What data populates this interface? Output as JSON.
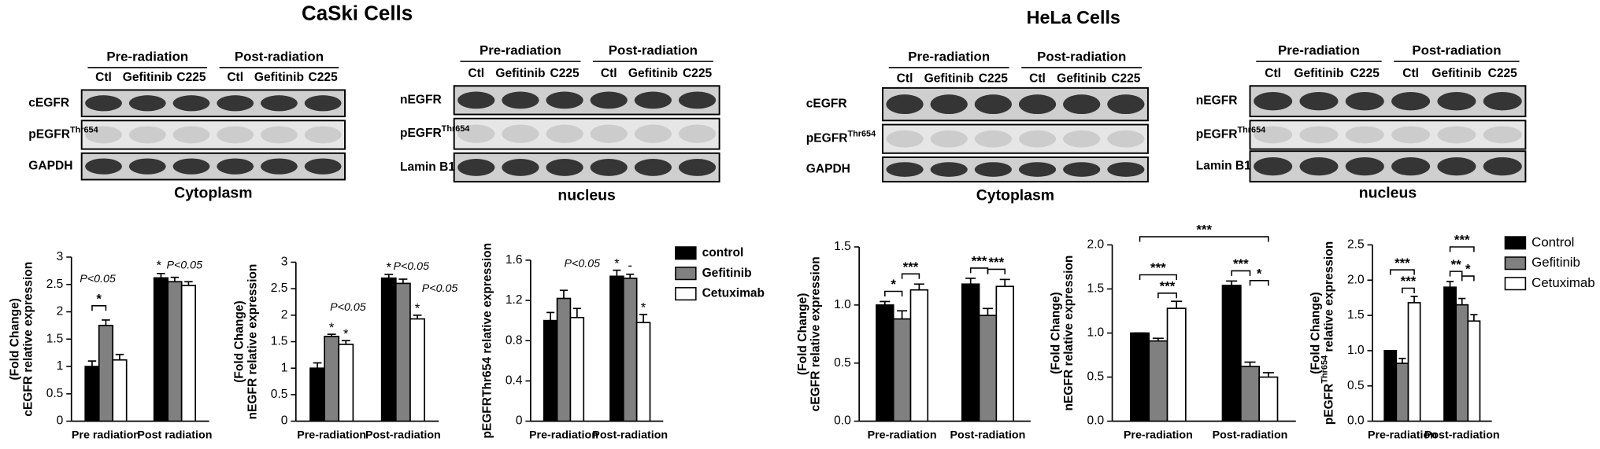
{
  "panels": {
    "caski_title": "CaSki Cells",
    "hela_title": "HeLa Cells"
  },
  "blots": [
    {
      "groups": [
        "Pre-radiation",
        "Post-radiation"
      ],
      "lanes": [
        "Ctl",
        "Gefitinib",
        "C225",
        "Ctl",
        "Gefitinib",
        "C225"
      ],
      "rows": [
        [
          {
            "text": "cEGFR"
          }
        ],
        [
          {
            "text": "pEGFR"
          },
          {
            "text": "Thr654",
            "sup": true
          }
        ],
        [
          {
            "text": "GAPDH"
          }
        ]
      ],
      "caption": "Cytoplasm"
    },
    {
      "groups": [
        "Pre-radiation",
        "Post-radiation"
      ],
      "lanes": [
        "Ctl",
        "Gefitinib",
        "C225",
        "Ctl",
        "Gefitinib",
        "C225"
      ],
      "rows": [
        [
          {
            "text": "nEGFR"
          }
        ],
        [
          {
            "text": "pEGFR"
          },
          {
            "text": "Thr654",
            "sup": true
          }
        ],
        [
          {
            "text": "Lamin B1"
          }
        ]
      ],
      "caption": "nucleus"
    },
    {
      "groups": [
        "Pre-radiation",
        "Post-radiation"
      ],
      "lanes": [
        "Ctl",
        "Gefitinib",
        "C225",
        "Ctl",
        "Gefitinib",
        "C225"
      ],
      "rows": [
        [
          {
            "text": "cEGFR"
          }
        ],
        [
          {
            "text": "pEGFR"
          },
          {
            "text": "Thr654",
            "sup": true
          }
        ],
        [
          {
            "text": "GAPDH"
          }
        ]
      ],
      "caption": "Cytoplasm"
    },
    {
      "groups": [
        "Pre-radiation",
        "Post-radiation"
      ],
      "lanes": [
        "Ctl",
        "Gefitinib",
        "C225",
        "Ctl",
        "Gefitinib",
        "C225"
      ],
      "rows": [
        [
          {
            "text": "nEGFR"
          }
        ],
        [
          {
            "text": "pEGFR"
          },
          {
            "text": "Thr654",
            "sup": true
          }
        ],
        [
          {
            "text": "Lamin B1"
          }
        ]
      ],
      "caption": "nucleus"
    }
  ],
  "chart_data": [
    {
      "type": "bar",
      "ylabel": [
        [
          {
            "text": "cEGFR relative expression"
          }
        ],
        [
          {
            "text": "(Fold Change)"
          }
        ]
      ],
      "categories": [
        "Pre radiation",
        "Post radiation"
      ],
      "ylim": [
        0,
        3
      ],
      "yticks": [
        0,
        0.5,
        1,
        1.5,
        2,
        2.5,
        3
      ],
      "series": [
        {
          "color": "#000000",
          "values": [
            1.0,
            2.62
          ],
          "errors": [
            0.1,
            0.08
          ]
        },
        {
          "color": "#808080",
          "values": [
            1.75,
            2.55
          ],
          "errors": [
            0.1,
            0.08
          ]
        },
        {
          "color": "#ffffff",
          "values": [
            1.12,
            2.48
          ],
          "errors": [
            0.1,
            0.07
          ]
        }
      ],
      "annotations": [
        "P<0.05",
        "*",
        "*",
        "P<0.05"
      ]
    },
    {
      "type": "bar",
      "ylabel": [
        [
          {
            "text": "nEGFR relative expression"
          }
        ],
        [
          {
            "text": "(Fold Change)"
          }
        ]
      ],
      "categories": [
        "Pre-radiation",
        "Post-radiation"
      ],
      "ylim": [
        0,
        3
      ],
      "yticks": [
        0,
        0.5,
        1,
        1.5,
        2,
        2.5,
        3
      ],
      "series": [
        {
          "color": "#000000",
          "values": [
            1.0,
            2.7
          ],
          "errors": [
            0.1,
            0.07
          ]
        },
        {
          "color": "#808080",
          "values": [
            1.6,
            2.6
          ],
          "errors": [
            0.04,
            0.08
          ]
        },
        {
          "color": "#ffffff",
          "values": [
            1.45,
            1.93
          ],
          "errors": [
            0.07,
            0.07
          ]
        }
      ],
      "annotations": [
        "P<0.05",
        "*",
        "*",
        "*",
        "P<0.05",
        "P<0.05",
        "*"
      ]
    },
    {
      "type": "bar",
      "ylabel": [
        [
          {
            "text": "pEGFRThr654 relative expression"
          }
        ]
      ],
      "categories": [
        "Pre-radiation",
        "Post-radiation"
      ],
      "ylim": [
        0,
        1.6
      ],
      "yticks": [
        0,
        0.4,
        0.8,
        1.2,
        1.6
      ],
      "series": [
        {
          "name": "control",
          "color": "#000000",
          "values": [
            1.0,
            1.44
          ],
          "errors": [
            0.08,
            0.06
          ]
        },
        {
          "name": "Gefitinib",
          "color": "#808080",
          "values": [
            1.22,
            1.42
          ],
          "errors": [
            0.08,
            0.04
          ]
        },
        {
          "name": "Cetuximab",
          "color": "#ffffff",
          "values": [
            1.03,
            0.98
          ],
          "errors": [
            0.09,
            0.08
          ]
        }
      ],
      "annotations": [
        "P<0.05",
        "*",
        "-",
        "*"
      ]
    },
    {
      "type": "bar",
      "ylabel": [
        [
          {
            "text": "cEGFR relative expression"
          }
        ],
        [
          {
            "text": "(Fold Change)"
          }
        ]
      ],
      "categories": [
        "Pre-radiation",
        "Post-radiation"
      ],
      "ylim": [
        0,
        1.5
      ],
      "yticks": [
        {
          "value": 0,
          "label": "0.0"
        },
        0.5,
        {
          "value": 1,
          "label": "1.0"
        },
        1.5
      ],
      "series": [
        {
          "color": "#000000",
          "values": [
            1.0,
            1.18
          ],
          "errors": [
            0.03,
            0.05
          ]
        },
        {
          "color": "#808080",
          "values": [
            0.88,
            0.91
          ],
          "errors": [
            0.07,
            0.06
          ]
        },
        {
          "color": "#ffffff",
          "values": [
            1.13,
            1.16
          ],
          "errors": [
            0.05,
            0.06
          ]
        }
      ],
      "annotations": [
        "*",
        "***",
        "***",
        "***"
      ]
    },
    {
      "type": "bar",
      "ylabel": [
        [
          {
            "text": "nEGFR relative expression"
          }
        ],
        [
          {
            "text": "(Fold Change)"
          }
        ]
      ],
      "categories": [
        "Pre-radiation",
        "Post-radiation"
      ],
      "ylim": [
        0,
        2
      ],
      "yticks": [
        {
          "value": 0,
          "label": "0.0"
        },
        0.5,
        {
          "value": 1,
          "label": "1.0"
        },
        1.5,
        {
          "value": 2,
          "label": "2.0"
        }
      ],
      "series": [
        {
          "color": "#000000",
          "values": [
            1.0,
            1.54
          ],
          "errors": [
            0.0,
            0.05
          ]
        },
        {
          "color": "#808080",
          "values": [
            0.91,
            0.62
          ],
          "errors": [
            0.03,
            0.05
          ]
        },
        {
          "color": "#ffffff",
          "values": [
            1.28,
            0.5
          ],
          "errors": [
            0.08,
            0.05
          ]
        }
      ],
      "annotations": [
        "***",
        "***",
        "***",
        "***",
        "*"
      ]
    },
    {
      "type": "bar",
      "ylabel": [
        [
          {
            "text": "pEGFR"
          },
          {
            "text": "Thr654",
            "sup": true
          },
          {
            "text": " relative expression"
          }
        ],
        [
          {
            "text": "(Fold Change)"
          }
        ]
      ],
      "categories": [
        "Pre-radiation",
        "Post-radiation"
      ],
      "ylim": [
        0,
        2.5
      ],
      "yticks": [
        {
          "value": 0,
          "label": "0.0"
        },
        0.5,
        {
          "value": 1,
          "label": "1.0"
        },
        1.5,
        {
          "value": 2,
          "label": "2.0"
        },
        2.5
      ],
      "series": [
        {
          "name": "Control",
          "color": "#000000",
          "values": [
            1.0,
            1.9
          ],
          "errors": [
            0.0,
            0.08
          ]
        },
        {
          "name": "Gefitinib",
          "color": "#808080",
          "values": [
            0.82,
            1.65
          ],
          "errors": [
            0.07,
            0.09
          ]
        },
        {
          "name": "Cetuximab",
          "color": "#ffffff",
          "values": [
            1.68,
            1.42
          ],
          "errors": [
            0.09,
            0.09
          ]
        }
      ],
      "annotations": [
        "***",
        "***",
        "***",
        "**",
        "*"
      ]
    }
  ]
}
